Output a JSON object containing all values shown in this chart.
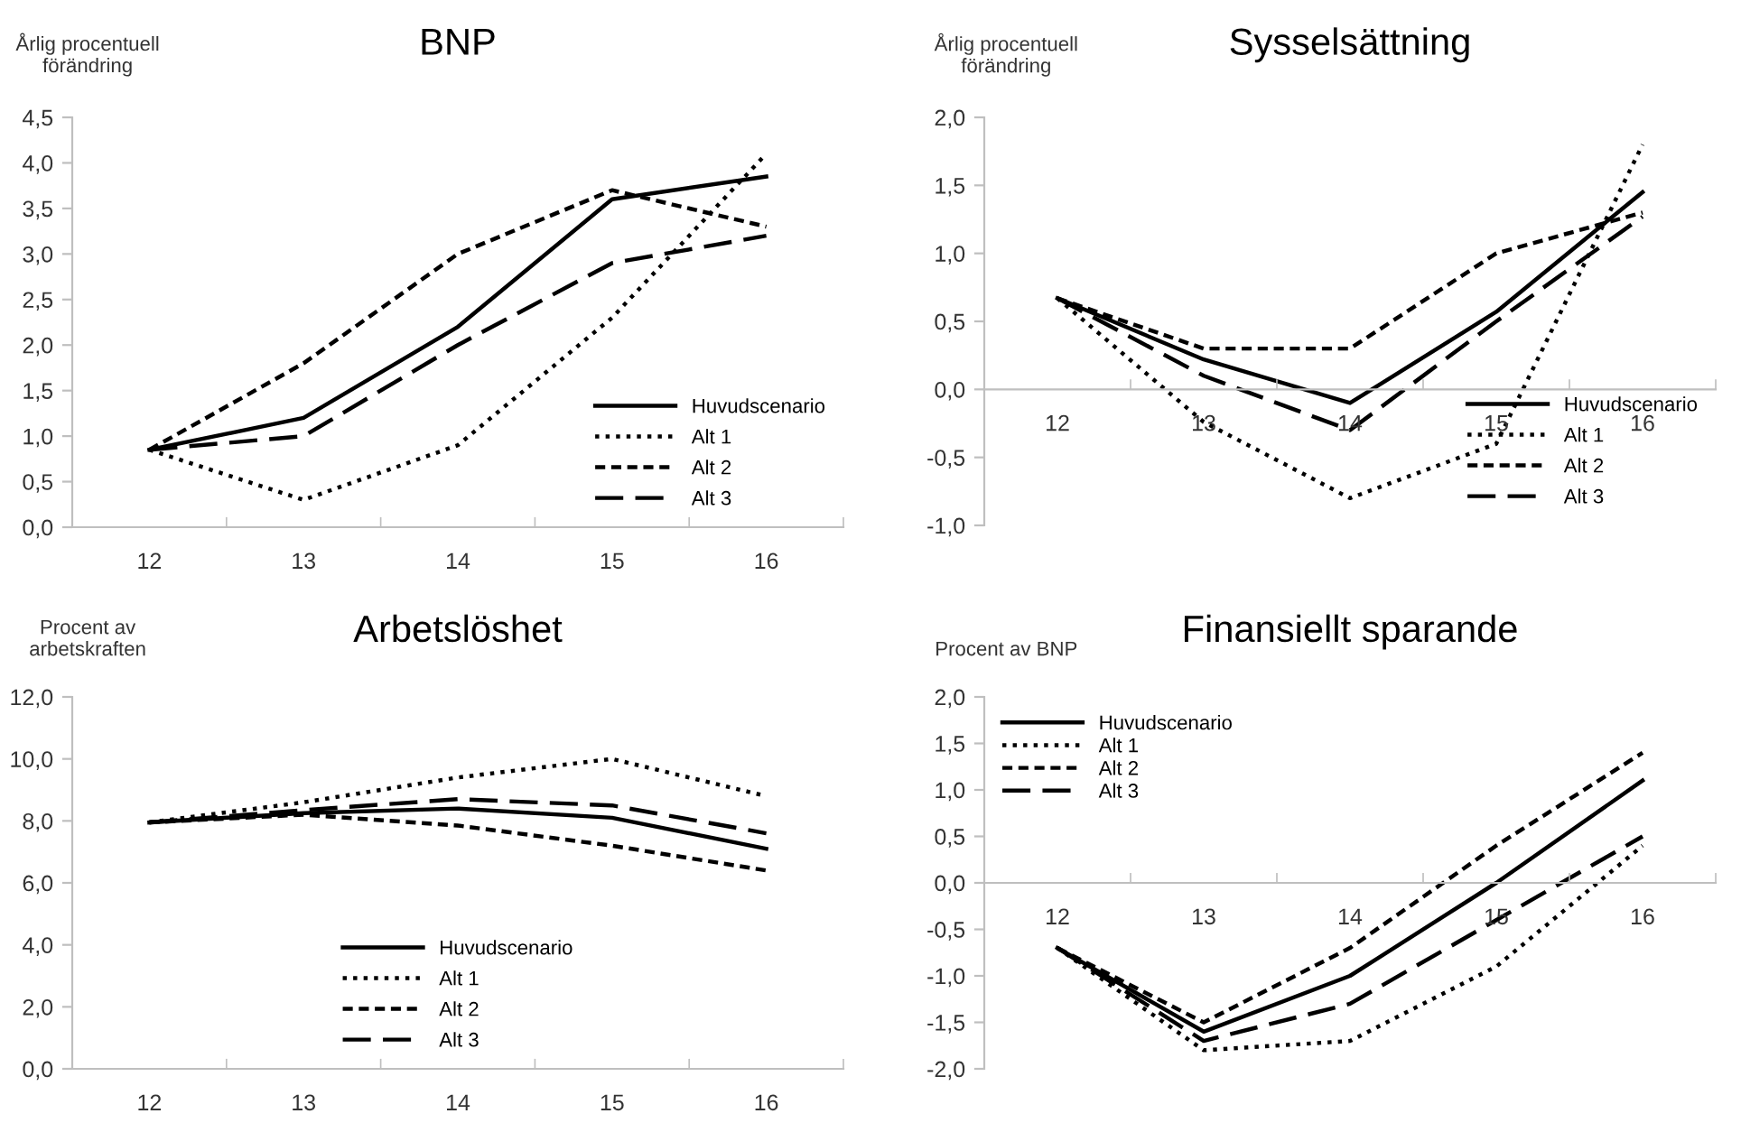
{
  "chart_data": [
    {
      "type": "line",
      "title": "BNP",
      "ylabel": "Årlig procentuell\nförändring",
      "categories": [
        "12",
        "13",
        "14",
        "15",
        "16"
      ],
      "ylim": [
        0,
        4.5
      ],
      "yticks": [
        {
          "value": 0,
          "label": "0,0"
        },
        {
          "value": 0.5,
          "label": "0,5"
        },
        {
          "value": 1,
          "label": "1,0"
        },
        {
          "value": 1.5,
          "label": "1,5"
        },
        {
          "value": 2,
          "label": "2,0"
        },
        {
          "value": 2.5,
          "label": "2,5"
        },
        {
          "value": 3,
          "label": "3,0"
        },
        {
          "value": 3.5,
          "label": "3,5"
        },
        {
          "value": 4,
          "label": "4,0"
        },
        {
          "value": 4.5,
          "label": "4,5"
        }
      ],
      "legend": "bottom right",
      "marker": "none",
      "series": [
        {
          "name": "Huvudscenario",
          "color": "#000000",
          "line_style": "solid",
          "values": [
            0.85,
            1.2,
            2.2,
            3.6,
            3.85
          ]
        },
        {
          "name": "Alt 1",
          "color": "#000000",
          "line_style": "dotted",
          "values": [
            0.85,
            0.3,
            0.9,
            2.3,
            4.1
          ]
        },
        {
          "name": "Alt 2",
          "color": "#000000",
          "line_style": "dashed",
          "values": [
            0.85,
            1.8,
            3.0,
            3.7,
            3.3
          ]
        },
        {
          "name": "Alt 3",
          "color": "#000000",
          "line_style": "long dashed",
          "values": [
            0.85,
            1.0,
            2.0,
            2.9,
            3.2
          ]
        }
      ]
    },
    {
      "type": "line",
      "title": "Sysselsättning",
      "ylabel": "Årlig procentuell\nförändring",
      "categories": [
        "12",
        "13",
        "14",
        "15",
        "16"
      ],
      "ylim": [
        -1,
        2
      ],
      "yticks": [
        {
          "value": -1,
          "label": "-1,0"
        },
        {
          "value": -0.5,
          "label": "-0,5"
        },
        {
          "value": 0,
          "label": "0,0"
        },
        {
          "value": 0.5,
          "label": "0,5"
        },
        {
          "value": 1,
          "label": "1,0"
        },
        {
          "value": 1.5,
          "label": "1,5"
        },
        {
          "value": 2,
          "label": "2,0"
        }
      ],
      "legend": "bottom right",
      "marker": "none",
      "series": [
        {
          "name": "Huvudscenario",
          "color": "#000000",
          "line_style": "solid",
          "values": [
            0.67,
            0.22,
            -0.1,
            0.57,
            1.45
          ]
        },
        {
          "name": "Alt 1",
          "color": "#000000",
          "line_style": "dotted",
          "values": [
            0.67,
            -0.24,
            -0.8,
            -0.4,
            1.8
          ]
        },
        {
          "name": "Alt 2",
          "color": "#000000",
          "line_style": "dashed",
          "values": [
            0.67,
            0.3,
            0.3,
            1.0,
            1.3
          ]
        },
        {
          "name": "Alt 3",
          "color": "#000000",
          "line_style": "long dashed",
          "values": [
            0.67,
            0.1,
            -0.3,
            0.5,
            1.27
          ]
        }
      ]
    },
    {
      "type": "line",
      "title": "Arbetslöshet",
      "ylabel": "Procent av\narbetskraften",
      "categories": [
        "12",
        "13",
        "14",
        "15",
        "16"
      ],
      "ylim": [
        0,
        12
      ],
      "yticks": [
        {
          "value": 0,
          "label": "0,0"
        },
        {
          "value": 2,
          "label": "2,0"
        },
        {
          "value": 4,
          "label": "4,0"
        },
        {
          "value": 6,
          "label": "6,0"
        },
        {
          "value": 8,
          "label": "8,0"
        },
        {
          "value": 10,
          "label": "10,0"
        },
        {
          "value": 12,
          "label": "12,0"
        }
      ],
      "legend": "bottom",
      "marker": "none",
      "series": [
        {
          "name": "Huvudscenario",
          "color": "#000000",
          "line_style": "solid",
          "values": [
            7.95,
            8.25,
            8.4,
            8.1,
            7.1
          ]
        },
        {
          "name": "Alt 1",
          "color": "#000000",
          "line_style": "dotted",
          "values": [
            7.95,
            8.6,
            9.4,
            10.0,
            8.8
          ]
        },
        {
          "name": "Alt 2",
          "color": "#000000",
          "line_style": "dashed",
          "values": [
            7.95,
            8.2,
            7.85,
            7.2,
            6.4
          ]
        },
        {
          "name": "Alt 3",
          "color": "#000000",
          "line_style": "long dashed",
          "values": [
            7.95,
            8.35,
            8.7,
            8.5,
            7.6
          ]
        }
      ]
    },
    {
      "type": "line",
      "title": "Finansiellt sparande",
      "ylabel": "Procent av BNP",
      "categories": [
        "12",
        "13",
        "14",
        "15",
        "16"
      ],
      "ylim": [
        -2,
        2
      ],
      "yticks": [
        {
          "value": -2,
          "label": "-2,0"
        },
        {
          "value": -1.5,
          "label": "-1,5"
        },
        {
          "value": -1,
          "label": "-1,0"
        },
        {
          "value": -0.5,
          "label": "-0,5"
        },
        {
          "value": 0,
          "label": "0,0"
        },
        {
          "value": 0.5,
          "label": "0,5"
        },
        {
          "value": 1,
          "label": "1,0"
        },
        {
          "value": 1.5,
          "label": "1,5"
        },
        {
          "value": 2,
          "label": "2,0"
        }
      ],
      "legend": "top left",
      "marker": "none",
      "series": [
        {
          "name": "Huvudscenario",
          "color": "#000000",
          "line_style": "solid",
          "values": [
            -0.7,
            -1.6,
            -1.0,
            0.0,
            1.1
          ]
        },
        {
          "name": "Alt 1",
          "color": "#000000",
          "line_style": "dotted",
          "values": [
            -0.7,
            -1.8,
            -1.7,
            -0.9,
            0.4
          ]
        },
        {
          "name": "Alt 2",
          "color": "#000000",
          "line_style": "dashed",
          "values": [
            -0.7,
            -1.5,
            -0.7,
            0.4,
            1.4
          ]
        },
        {
          "name": "Alt 3",
          "color": "#000000",
          "line_style": "long dashed",
          "values": [
            -0.7,
            -1.7,
            -1.3,
            -0.4,
            0.5
          ]
        }
      ]
    }
  ]
}
